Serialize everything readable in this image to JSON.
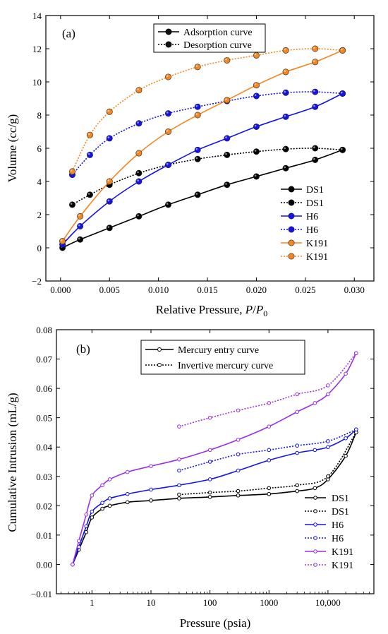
{
  "panel_a": {
    "label": "(a)",
    "xlabel_main": "Relative Pressure, ",
    "xlabel_ital": "P",
    "xlabel_slash": "/",
    "xlabel_ital2": "P",
    "xlabel_sub": "0",
    "ylabel": "Volume  (cc/g)",
    "top_legend": [
      "Adsorption curve",
      "Desorption curve"
    ],
    "side_legend": [
      "DS1",
      "DS1",
      "H6",
      "H6",
      "K191",
      "K191"
    ]
  },
  "panel_b": {
    "label": "(b)",
    "xlabel": "Pressure (psia)",
    "ylabel": "Cumulative Intrusion (mL/g)",
    "top_legend": [
      "Mercury entry curve",
      "Invertive mercury curve"
    ],
    "side_legend": [
      "DS1",
      "DS1",
      "H6",
      "H6",
      "K191",
      "K191"
    ]
  },
  "colors": {
    "DS1": "#000000",
    "H6": "#1414e6",
    "K191": "#f5851f",
    "K191_b": "#9b2fe0"
  },
  "chart_data": [
    {
      "type": "line",
      "panel": "a",
      "xlim": [
        -0.0015,
        0.032
      ],
      "ylim": [
        -2,
        14
      ],
      "x_ticks": [
        0.0,
        0.005,
        0.01,
        0.015,
        0.02,
        0.025,
        0.03
      ],
      "x_tick_labels": [
        "0.000",
        "0.005",
        "0.010",
        "0.015",
        "0.020",
        "0.025",
        "0.030"
      ],
      "y_ticks": [
        -2,
        0,
        2,
        4,
        6,
        8,
        10,
        12,
        14
      ],
      "y_tick_labels": [
        "−2",
        "0",
        "2",
        "4",
        "6",
        "8",
        "10",
        "12",
        "14"
      ],
      "series": [
        {
          "name": "DS1",
          "curve": "adsorption",
          "x": [
            0.0002,
            0.002,
            0.005,
            0.008,
            0.011,
            0.014,
            0.017,
            0.02,
            0.023,
            0.026,
            0.0288
          ],
          "y": [
            0.0,
            0.5,
            1.2,
            1.9,
            2.6,
            3.2,
            3.8,
            4.3,
            4.8,
            5.3,
            5.9
          ]
        },
        {
          "name": "DS1",
          "curve": "desorption",
          "x": [
            0.0288,
            0.026,
            0.023,
            0.02,
            0.017,
            0.014,
            0.011,
            0.008,
            0.005,
            0.003,
            0.0012
          ],
          "y": [
            5.9,
            6.0,
            5.95,
            5.8,
            5.6,
            5.35,
            5.0,
            4.5,
            3.8,
            3.2,
            2.6
          ]
        },
        {
          "name": "H6",
          "curve": "adsorption",
          "x": [
            0.0002,
            0.002,
            0.005,
            0.008,
            0.011,
            0.014,
            0.017,
            0.02,
            0.023,
            0.026,
            0.0288
          ],
          "y": [
            0.2,
            1.3,
            2.8,
            4.0,
            5.0,
            5.9,
            6.6,
            7.3,
            7.9,
            8.5,
            9.3
          ]
        },
        {
          "name": "H6",
          "curve": "desorption",
          "x": [
            0.0288,
            0.026,
            0.023,
            0.02,
            0.017,
            0.014,
            0.011,
            0.008,
            0.005,
            0.003,
            0.0012
          ],
          "y": [
            9.3,
            9.4,
            9.35,
            9.15,
            8.85,
            8.5,
            8.1,
            7.5,
            6.6,
            5.6,
            4.4
          ]
        },
        {
          "name": "K191",
          "curve": "adsorption",
          "x": [
            0.0002,
            0.002,
            0.005,
            0.008,
            0.011,
            0.014,
            0.017,
            0.02,
            0.023,
            0.026,
            0.0288
          ],
          "y": [
            0.4,
            1.9,
            4.0,
            5.7,
            7.0,
            8.0,
            8.9,
            9.8,
            10.6,
            11.2,
            11.9
          ]
        },
        {
          "name": "K191",
          "curve": "desorption",
          "x": [
            0.0288,
            0.026,
            0.023,
            0.02,
            0.017,
            0.014,
            0.011,
            0.008,
            0.005,
            0.003,
            0.0012
          ],
          "y": [
            11.9,
            12.0,
            11.9,
            11.6,
            11.3,
            10.9,
            10.3,
            9.5,
            8.2,
            6.8,
            4.6
          ]
        }
      ]
    },
    {
      "type": "line",
      "panel": "b",
      "x_scale": "log",
      "xlim": [
        0.25,
        60000
      ],
      "ylim": [
        -0.01,
        0.08
      ],
      "x_ticks": [
        1,
        10,
        100,
        1000,
        10000
      ],
      "x_tick_labels": [
        "1",
        "10",
        "100",
        "1000",
        "10,000"
      ],
      "y_ticks": [
        -0.01,
        0.0,
        0.01,
        0.02,
        0.03,
        0.04,
        0.05,
        0.06,
        0.07,
        0.08
      ],
      "y_tick_labels": [
        "−0.01",
        "0.00",
        "0.01",
        "0.02",
        "0.03",
        "0.04",
        "0.05",
        "0.06",
        "0.07",
        "0.08"
      ],
      "series": [
        {
          "name": "DS1",
          "curve": "entry",
          "x": [
            0.47,
            0.6,
            0.8,
            1.0,
            1.5,
            2,
            4,
            10,
            30,
            100,
            300,
            1000,
            3000,
            6000,
            10000,
            20000,
            30000
          ],
          "y": [
            0.0,
            0.005,
            0.011,
            0.016,
            0.019,
            0.02,
            0.0212,
            0.0218,
            0.0225,
            0.023,
            0.0235,
            0.024,
            0.025,
            0.026,
            0.029,
            0.037,
            0.045
          ]
        },
        {
          "name": "DS1",
          "curve": "extrusion",
          "x": [
            30,
            100,
            300,
            1000,
            3000,
            10000,
            30000
          ],
          "y": [
            0.0238,
            0.0245,
            0.025,
            0.026,
            0.027,
            0.03,
            0.045
          ]
        },
        {
          "name": "H6",
          "curve": "entry",
          "x": [
            0.47,
            0.6,
            0.8,
            1.0,
            1.5,
            2,
            4,
            10,
            30,
            100,
            300,
            1000,
            3000,
            6000,
            10000,
            20000,
            30000
          ],
          "y": [
            0.0,
            0.006,
            0.013,
            0.018,
            0.021,
            0.0225,
            0.024,
            0.0255,
            0.027,
            0.029,
            0.032,
            0.0355,
            0.038,
            0.039,
            0.04,
            0.043,
            0.046
          ]
        },
        {
          "name": "H6",
          "curve": "extrusion",
          "x": [
            30,
            100,
            300,
            1000,
            3000,
            10000,
            30000
          ],
          "y": [
            0.032,
            0.035,
            0.0375,
            0.039,
            0.0405,
            0.042,
            0.046
          ]
        },
        {
          "name": "K191",
          "curve": "entry",
          "x": [
            0.47,
            0.6,
            0.8,
            1.0,
            1.5,
            2,
            4,
            10,
            30,
            100,
            300,
            1000,
            3000,
            6000,
            10000,
            20000,
            30000
          ],
          "y": [
            0.0,
            0.008,
            0.017,
            0.0235,
            0.027,
            0.029,
            0.0315,
            0.0335,
            0.0358,
            0.039,
            0.0425,
            0.047,
            0.052,
            0.055,
            0.058,
            0.065,
            0.072
          ]
        },
        {
          "name": "K191",
          "curve": "extrusion",
          "x": [
            30,
            100,
            300,
            1000,
            3000,
            10000,
            30000
          ],
          "y": [
            0.047,
            0.05,
            0.0525,
            0.055,
            0.058,
            0.061,
            0.072
          ]
        }
      ]
    }
  ]
}
